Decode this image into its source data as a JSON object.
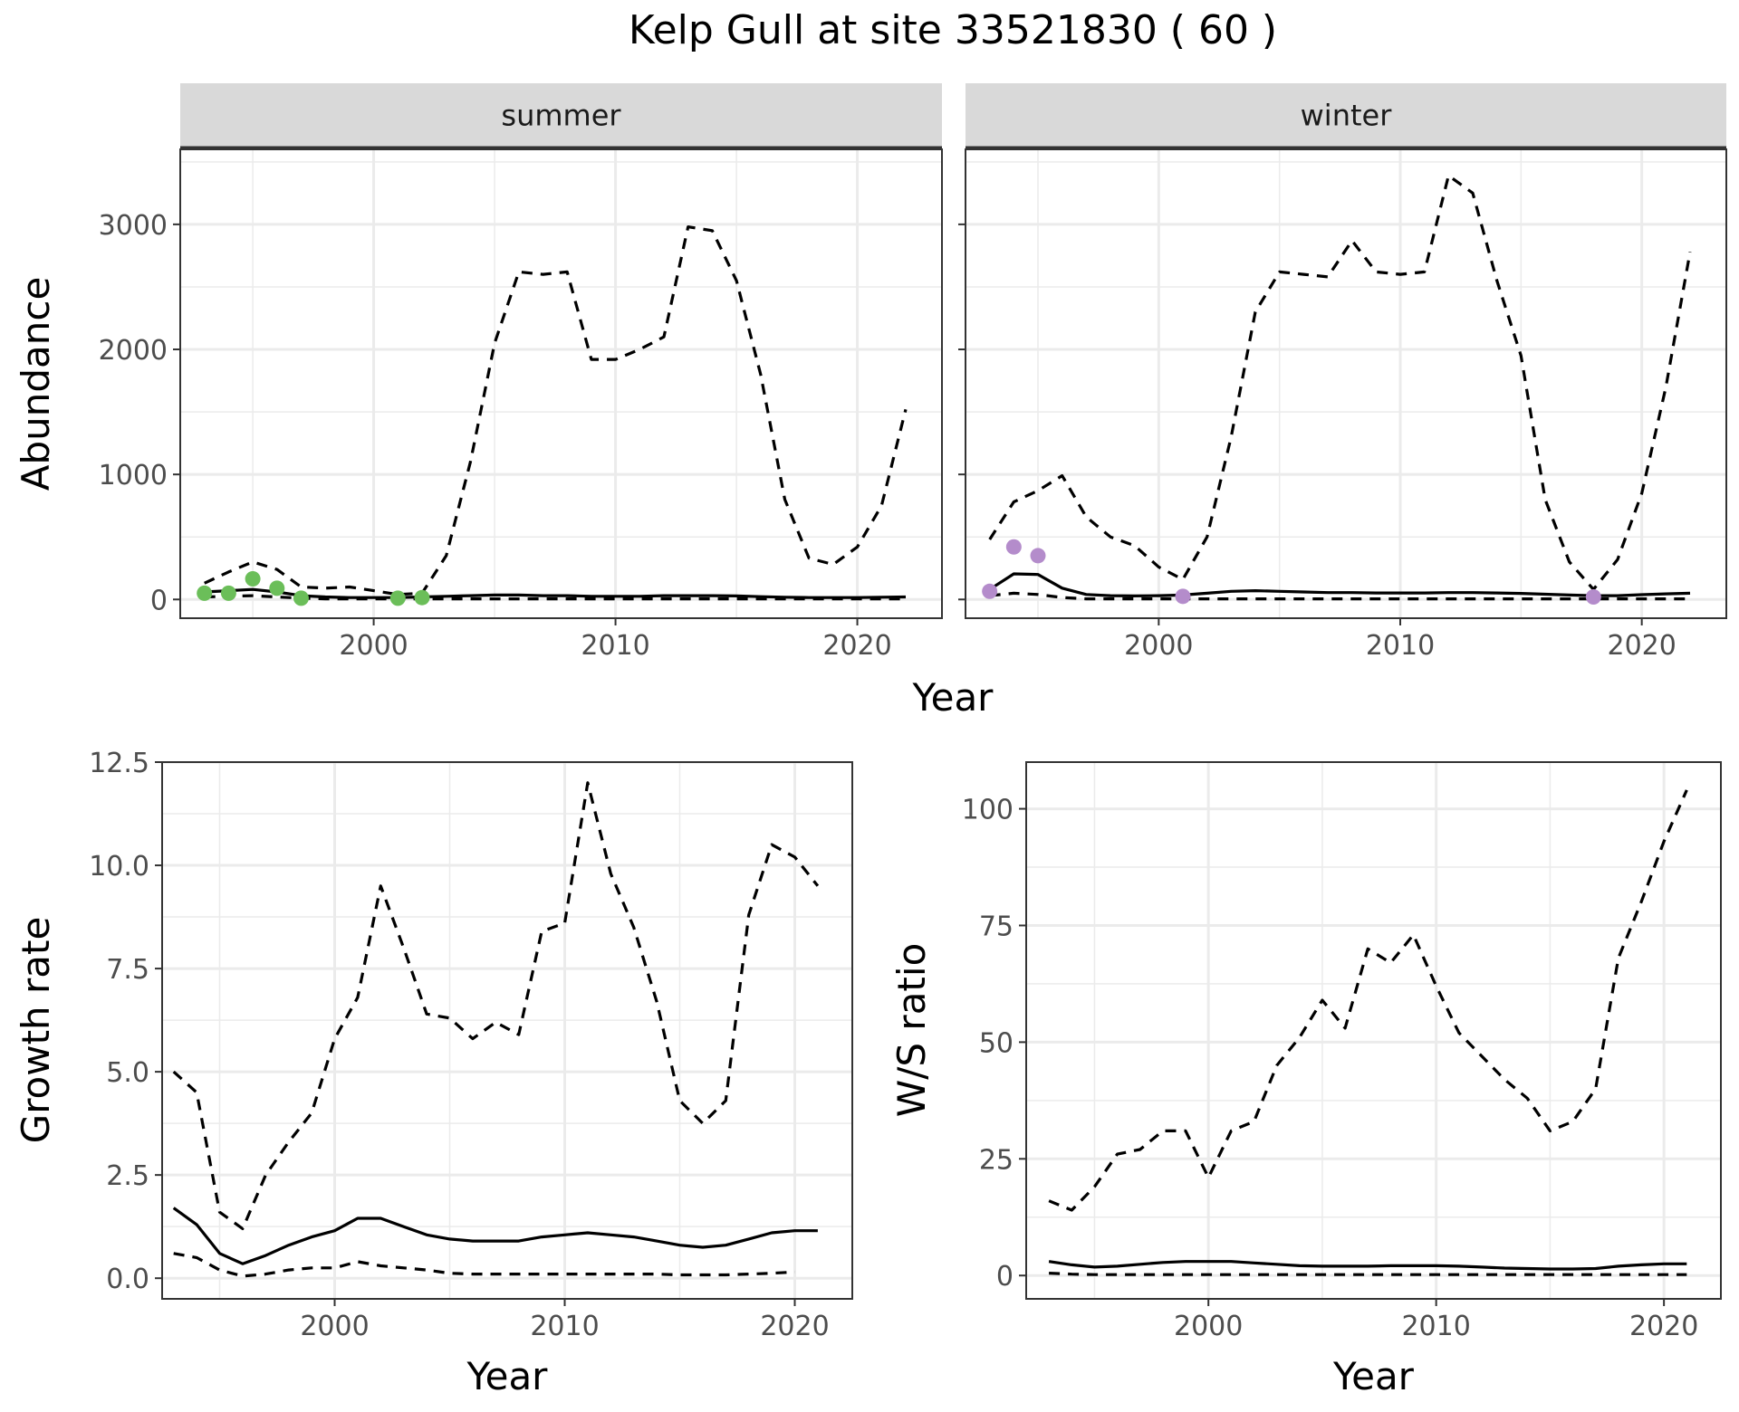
{
  "figure": {
    "title": "Kelp Gull at site 33521830 ( 60 )",
    "shared_xlabel": "Year"
  },
  "colors": {
    "summer_points": "#6BBE59",
    "winter_points": "#B48CCB",
    "strip_bg": "#D9D9D9",
    "grid": "#EBEBEB",
    "line": "#000000"
  },
  "chart_data": [
    {
      "type": "line",
      "panel": "summer",
      "strip_label": "summer",
      "ylabel": "Abundance",
      "xlim": [
        1992,
        2023.5
      ],
      "ylim": [
        -150,
        3600
      ],
      "xticks": [
        2000,
        2010,
        2020
      ],
      "yticks": [
        0,
        1000,
        2000,
        3000
      ],
      "grid": true,
      "series": [
        {
          "style": "solid",
          "x": [
            1993,
            1994,
            1995,
            1996,
            1997,
            1998,
            1999,
            2000,
            2001,
            2002,
            2003,
            2004,
            2005,
            2006,
            2007,
            2008,
            2009,
            2010,
            2011,
            2012,
            2013,
            2014,
            2015,
            2016,
            2017,
            2018,
            2019,
            2020,
            2021,
            2022
          ],
          "values": [
            60,
            70,
            80,
            60,
            30,
            20,
            15,
            15,
            15,
            20,
            25,
            30,
            35,
            35,
            30,
            30,
            25,
            25,
            25,
            30,
            30,
            30,
            28,
            22,
            18,
            15,
            15,
            15,
            18,
            20
          ]
        },
        {
          "style": "dashed",
          "x": [
            1993,
            1994,
            1995,
            1996,
            1997,
            1998,
            1999,
            2000,
            2001,
            2002,
            2003,
            2004,
            2005,
            2006,
            2007,
            2008,
            2009,
            2010,
            2011,
            2012,
            2013,
            2014,
            2015,
            2016,
            2017,
            2018,
            2019,
            2020,
            2021,
            2022
          ],
          "values": [
            130,
            220,
            300,
            240,
            100,
            90,
            100,
            70,
            40,
            50,
            350,
            1100,
            2050,
            2620,
            2600,
            2620,
            1920,
            1920,
            2000,
            2100,
            2980,
            2950,
            2550,
            1800,
            800,
            330,
            280,
            420,
            750,
            1520
          ]
        },
        {
          "style": "dashed",
          "x": [
            1993,
            1994,
            1995,
            1996,
            1997,
            1998,
            1999,
            2000,
            2001,
            2002,
            2003,
            2004,
            2005,
            2006,
            2007,
            2008,
            2009,
            2010,
            2011,
            2012,
            2013,
            2014,
            2015,
            2016,
            2017,
            2018,
            2019,
            2020,
            2021,
            2022
          ],
          "values": [
            20,
            25,
            30,
            20,
            10,
            5,
            5,
            5,
            5,
            5,
            5,
            5,
            5,
            5,
            5,
            5,
            5,
            5,
            5,
            5,
            5,
            5,
            5,
            5,
            5,
            5,
            5,
            5,
            5,
            5
          ]
        }
      ],
      "points": {
        "x": [
          1993,
          1994,
          1995,
          1996,
          1997,
          2001,
          2002
        ],
        "values": [
          50,
          50,
          165,
          90,
          10,
          10,
          15
        ]
      }
    },
    {
      "type": "line",
      "panel": "winter",
      "strip_label": "winter",
      "xlim": [
        1992,
        2023.5
      ],
      "ylim": [
        -150,
        3600
      ],
      "xticks": [
        2000,
        2010,
        2020
      ],
      "yticks": [
        0,
        1000,
        2000,
        3000
      ],
      "grid": true,
      "series": [
        {
          "style": "solid",
          "x": [
            1993,
            1994,
            1995,
            1996,
            1997,
            1998,
            1999,
            2000,
            2001,
            2002,
            2003,
            2004,
            2005,
            2006,
            2007,
            2008,
            2009,
            2010,
            2011,
            2012,
            2013,
            2014,
            2015,
            2016,
            2017,
            2018,
            2019,
            2020,
            2021,
            2022
          ],
          "values": [
            80,
            205,
            200,
            90,
            40,
            30,
            28,
            30,
            35,
            50,
            65,
            70,
            65,
            60,
            55,
            55,
            52,
            52,
            52,
            55,
            55,
            52,
            48,
            42,
            35,
            30,
            30,
            38,
            45,
            50
          ]
        },
        {
          "style": "dashed",
          "x": [
            1993,
            1994,
            1995,
            1996,
            1997,
            1998,
            1999,
            2000,
            2001,
            2002,
            2003,
            2004,
            2005,
            2006,
            2007,
            2008,
            2009,
            2010,
            2011,
            2012,
            2013,
            2014,
            2015,
            2016,
            2017,
            2018,
            2019,
            2020,
            2021,
            2022
          ],
          "values": [
            480,
            780,
            870,
            990,
            660,
            500,
            430,
            260,
            160,
            500,
            1300,
            2300,
            2620,
            2600,
            2580,
            2870,
            2620,
            2600,
            2620,
            3390,
            3250,
            2550,
            1950,
            800,
            300,
            80,
            320,
            850,
            1700,
            2780
          ]
        },
        {
          "style": "dashed",
          "x": [
            1993,
            1994,
            1995,
            1996,
            1997,
            1998,
            1999,
            2000,
            2001,
            2002,
            2003,
            2004,
            2005,
            2006,
            2007,
            2008,
            2009,
            2010,
            2011,
            2012,
            2013,
            2014,
            2015,
            2016,
            2017,
            2018,
            2019,
            2020,
            2021,
            2022
          ],
          "values": [
            30,
            50,
            40,
            15,
            5,
            5,
            5,
            5,
            5,
            5,
            5,
            5,
            5,
            5,
            5,
            5,
            5,
            5,
            5,
            5,
            5,
            5,
            5,
            5,
            5,
            5,
            5,
            5,
            5,
            5
          ]
        }
      ],
      "points": {
        "x": [
          1993,
          1994,
          1995,
          2001,
          2018
        ],
        "values": [
          65,
          420,
          350,
          25,
          20
        ]
      }
    },
    {
      "type": "line",
      "panel": "growth",
      "ylabel": "Growth rate",
      "xlabel": "Year",
      "xlim": [
        1992.5,
        2022.5
      ],
      "ylim": [
        -0.5,
        12.5
      ],
      "xticks": [
        2000,
        2010,
        2020
      ],
      "yticks": [
        0.0,
        2.5,
        5.0,
        7.5,
        10.0,
        12.5
      ],
      "ytick_labels": [
        "0.0",
        "2.5",
        "5.0",
        "7.5",
        "10.0",
        "12.5"
      ],
      "grid": true,
      "series": [
        {
          "style": "solid",
          "x": [
            1993,
            1994,
            1995,
            1996,
            1997,
            1998,
            1999,
            2000,
            2001,
            2002,
            2003,
            2004,
            2005,
            2006,
            2007,
            2008,
            2009,
            2010,
            2011,
            2012,
            2013,
            2014,
            2015,
            2016,
            2017,
            2018,
            2019,
            2020,
            2021
          ],
          "values": [
            1.7,
            1.3,
            0.6,
            0.35,
            0.55,
            0.8,
            1.0,
            1.15,
            1.45,
            1.45,
            1.25,
            1.05,
            0.95,
            0.9,
            0.9,
            0.9,
            1.0,
            1.05,
            1.1,
            1.05,
            1.0,
            0.9,
            0.8,
            0.75,
            0.8,
            0.95,
            1.1,
            1.15,
            1.15
          ]
        },
        {
          "style": "dashed",
          "x": [
            1993,
            1994,
            1995,
            1996,
            1997,
            1998,
            1999,
            2000,
            2001,
            2002,
            2003,
            2004,
            2005,
            2006,
            2007,
            2008,
            2009,
            2010,
            2011,
            2012,
            2013,
            2014,
            2015,
            2016,
            2017,
            2018,
            2019,
            2020,
            2021
          ],
          "values": [
            5.0,
            4.5,
            1.6,
            1.2,
            2.5,
            3.3,
            4.0,
            5.8,
            6.8,
            9.5,
            8.0,
            6.4,
            6.3,
            5.8,
            6.2,
            5.9,
            8.4,
            8.6,
            12.0,
            9.8,
            8.5,
            6.7,
            4.3,
            3.75,
            4.3,
            8.8,
            10.5,
            10.2,
            9.5
          ]
        },
        {
          "style": "dashed",
          "x": [
            1993,
            1994,
            1995,
            1996,
            1997,
            1998,
            1999,
            2000,
            2001,
            2002,
            2003,
            2004,
            2005,
            2006,
            2007,
            2008,
            2009,
            2010,
            2011,
            2012,
            2013,
            2014,
            2015,
            2016,
            2017,
            2018,
            2019,
            2020
          ],
          "values": [
            0.6,
            0.5,
            0.2,
            0.05,
            0.1,
            0.2,
            0.25,
            0.25,
            0.4,
            0.3,
            0.25,
            0.2,
            0.12,
            0.1,
            0.1,
            0.1,
            0.1,
            0.1,
            0.1,
            0.1,
            0.1,
            0.1,
            0.08,
            0.08,
            0.08,
            0.1,
            0.12,
            0.15
          ]
        }
      ]
    },
    {
      "type": "line",
      "panel": "ratio",
      "ylabel": "W/S ratio",
      "xlabel": "Year",
      "xlim": [
        1992,
        2022.5
      ],
      "ylim": [
        -5,
        110
      ],
      "xticks": [
        2000,
        2010,
        2020
      ],
      "yticks": [
        0,
        25,
        50,
        75,
        100
      ],
      "grid": true,
      "series": [
        {
          "style": "solid",
          "x": [
            1993,
            1994,
            1995,
            1996,
            1997,
            1998,
            1999,
            2000,
            2001,
            2002,
            2003,
            2004,
            2005,
            2006,
            2007,
            2008,
            2009,
            2010,
            2011,
            2012,
            2013,
            2014,
            2015,
            2016,
            2017,
            2018,
            2019,
            2020,
            2021
          ],
          "values": [
            3.0,
            2.3,
            1.8,
            2.0,
            2.4,
            2.8,
            3.0,
            3.0,
            3.0,
            2.7,
            2.4,
            2.1,
            2.0,
            2.0,
            2.0,
            2.1,
            2.1,
            2.1,
            2.0,
            1.8,
            1.6,
            1.5,
            1.4,
            1.4,
            1.5,
            2.0,
            2.3,
            2.5,
            2.5
          ]
        },
        {
          "style": "dashed",
          "x": [
            1993,
            1994,
            1995,
            1996,
            1997,
            1998,
            1999,
            2000,
            2001,
            2002,
            2003,
            2004,
            2005,
            2006,
            2007,
            2008,
            2009,
            2010,
            2011,
            2012,
            2013,
            2014,
            2015,
            2016,
            2017,
            2018,
            2019,
            2020,
            2021
          ],
          "values": [
            16,
            14,
            19,
            26,
            27,
            31,
            31,
            21,
            31,
            33,
            45,
            51,
            59,
            53,
            70,
            67,
            73,
            62,
            52,
            47,
            42,
            38,
            31,
            33,
            40,
            68,
            80,
            93,
            104
          ]
        },
        {
          "style": "dashed",
          "x": [
            1993,
            1994,
            1995,
            1996,
            1997,
            1998,
            1999,
            2000,
            2001,
            2002,
            2003,
            2004,
            2005,
            2006,
            2007,
            2008,
            2009,
            2010,
            2011,
            2012,
            2013,
            2014,
            2015,
            2016,
            2017,
            2018,
            2019,
            2020,
            2021
          ],
          "values": [
            0.5,
            0.3,
            0.2,
            0.2,
            0.2,
            0.2,
            0.2,
            0.2,
            0.2,
            0.2,
            0.2,
            0.2,
            0.2,
            0.2,
            0.2,
            0.2,
            0.2,
            0.2,
            0.2,
            0.2,
            0.2,
            0.2,
            0.2,
            0.2,
            0.2,
            0.2,
            0.2,
            0.2,
            0.2
          ]
        }
      ]
    }
  ]
}
